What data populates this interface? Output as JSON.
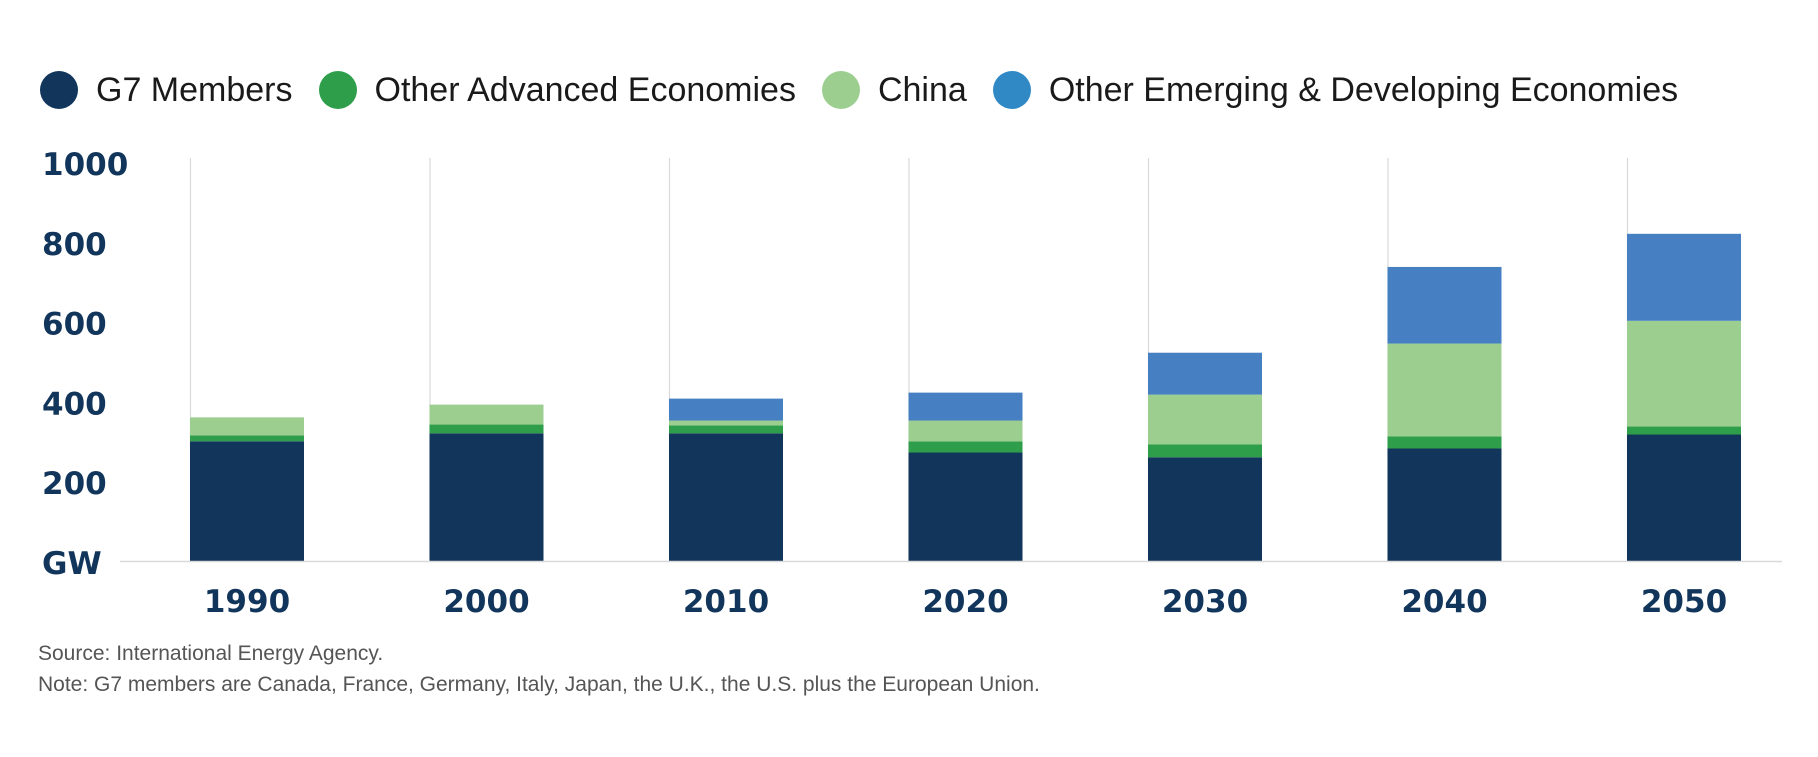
{
  "colors": {
    "g7": "#12355b",
    "other_advanced": "#2e9e4a",
    "china": "#9ccf8f",
    "other_emerging": "#4680c3",
    "legend_other_emerging": "#3089c5",
    "axis_text": "#12355b",
    "grid": "#d9d9d9"
  },
  "legend": [
    {
      "label": "G7 Members",
      "color": "#12355b"
    },
    {
      "label": "Other Advanced Economies",
      "color": "#2e9e4a"
    },
    {
      "label": "China",
      "color": "#9ccf8f"
    },
    {
      "label": "Other Emerging & Developing Economies",
      "color": "#3089c5"
    }
  ],
  "chart_data": {
    "type": "bar",
    "stacked": true,
    "categories": [
      "1990",
      "2000",
      "2010",
      "2020",
      "2030",
      "2040",
      "2050"
    ],
    "series": [
      {
        "name": "G7 Members",
        "values": [
          300,
          320,
          320,
          272,
          260,
          282,
          317
        ]
      },
      {
        "name": "Other Advanced Economies",
        "values": [
          15,
          22,
          20,
          28,
          32,
          30,
          20
        ]
      },
      {
        "name": "China",
        "values": [
          45,
          50,
          12,
          52,
          125,
          233,
          265
        ]
      },
      {
        "name": "Other Emerging & Developing Economies",
        "values": [
          0,
          0,
          55,
          70,
          105,
          192,
          218
        ]
      }
    ],
    "ylim": [
      0,
      1000
    ],
    "yticks": [
      "GW",
      "200",
      "400",
      "600",
      "800",
      "1000"
    ],
    "ytick_values": [
      0,
      200,
      400,
      600,
      800,
      1000
    ],
    "grid": "vertical",
    "legend_position": "top"
  },
  "notes": {
    "source": "Source: International Energy Agency.",
    "note": "Note: G7 members are Canada, France, Germany, Italy, Japan, the U.K., the U.S. plus the European Union."
  }
}
